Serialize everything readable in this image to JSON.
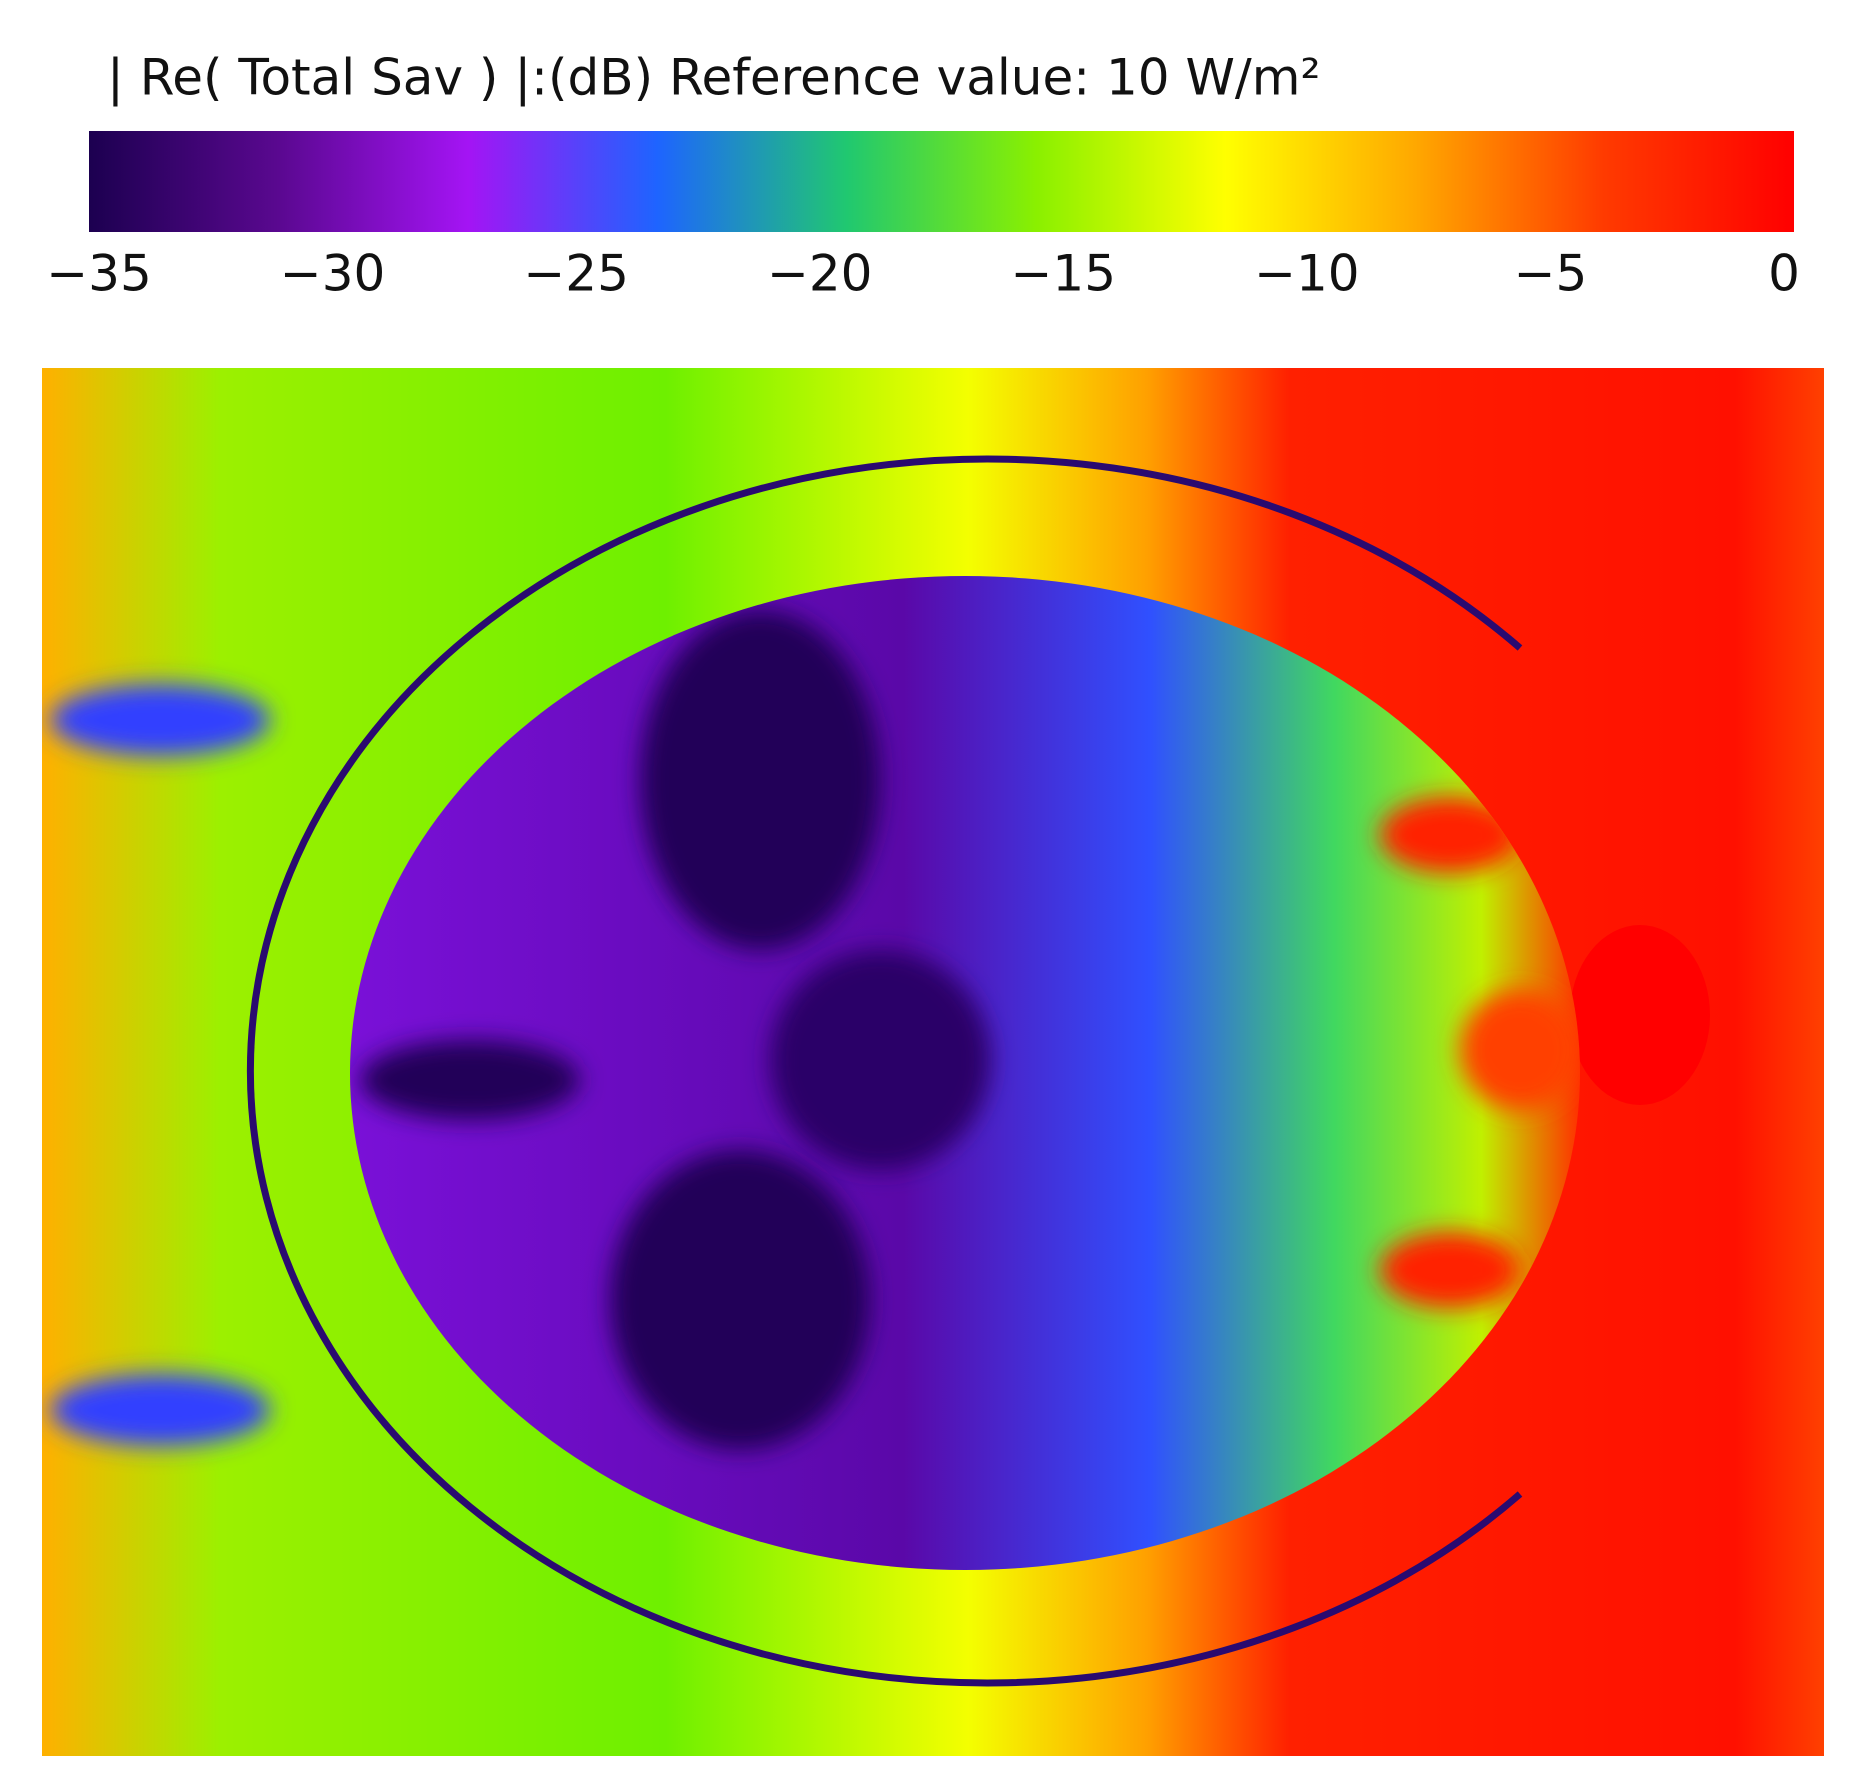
{
  "chart_data": {
    "type": "heatmap",
    "title": "| Re( Total Sav ) |:(dB) Reference value: 10 W/m²",
    "clim": [
      -35,
      0
    ],
    "cticks": [
      {
        "value": -35,
        "label": "−35"
      },
      {
        "value": -30,
        "label": "−30"
      },
      {
        "value": -25,
        "label": "−25"
      },
      {
        "value": -20,
        "label": "−20"
      },
      {
        "value": -15,
        "label": "−15"
      },
      {
        "value": -10,
        "label": "−10"
      },
      {
        "value": -5,
        "label": "−5"
      },
      0
    ],
    "colormap": [
      "#1c0050",
      "#5a0890",
      "#a414f4",
      "#1e64ff",
      "#20c870",
      "#8af000",
      "#ffff00",
      "#ffa800",
      "#ff3a00",
      "#ff0000"
    ]
  }
}
